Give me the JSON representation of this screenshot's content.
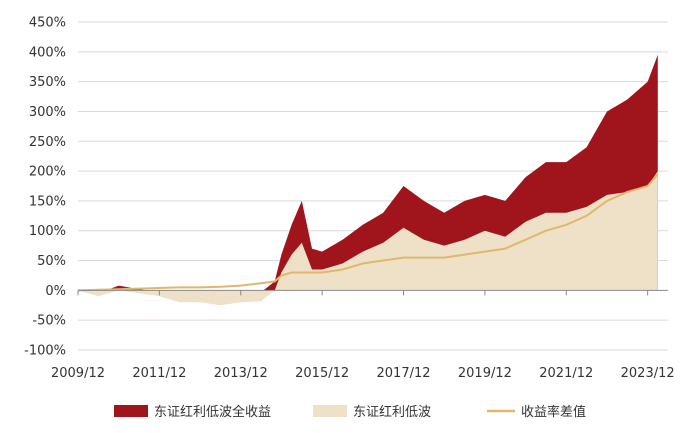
{
  "chart_data": {
    "type": "area",
    "title": "",
    "xlabel": "",
    "ylabel": "",
    "y_tick_labels": [
      "450%",
      "400%",
      "350%",
      "300%",
      "250%",
      "200%",
      "150%",
      "100%",
      "50%",
      "0%",
      "-50%",
      "-100%"
    ],
    "x_tick_labels": [
      "2009/12",
      "2011/12",
      "2013/12",
      "2015/12",
      "2017/12",
      "2019/12",
      "2021/12",
      "2023/12"
    ],
    "xlim": [
      "2009-12",
      "2024-06"
    ],
    "ylim": [
      -100,
      450
    ],
    "y_unit": "%",
    "grid": "horizontal",
    "legend_position": "bottom",
    "colors": {
      "total_return": "#a0151c",
      "index": "#efe1c8",
      "spread": "#e0b86b",
      "grid": "#d9d9d9",
      "axis": "#888888"
    },
    "x": [
      "2009-12",
      "2010-06",
      "2010-12",
      "2011-06",
      "2011-12",
      "2012-06",
      "2012-12",
      "2013-06",
      "2013-12",
      "2014-06",
      "2014-10",
      "2014-12",
      "2015-03",
      "2015-06",
      "2015-09",
      "2015-12",
      "2016-06",
      "2016-12",
      "2017-06",
      "2017-12",
      "2018-06",
      "2018-12",
      "2019-06",
      "2019-12",
      "2020-06",
      "2020-12",
      "2021-06",
      "2021-12",
      "2022-06",
      "2022-12",
      "2023-06",
      "2023-12",
      "2024-03"
    ],
    "series": [
      {
        "name": "东证红利低波全收益",
        "values": [
          0,
          -5,
          8,
          2,
          -3,
          -10,
          -8,
          -12,
          -8,
          -3,
          15,
          60,
          110,
          150,
          70,
          65,
          85,
          110,
          130,
          175,
          150,
          130,
          150,
          160,
          150,
          190,
          215,
          215,
          240,
          300,
          320,
          350,
          395
        ]
      },
      {
        "name": "东证红利低波",
        "values": [
          0,
          -10,
          0,
          -5,
          -10,
          -20,
          -20,
          -25,
          -20,
          -18,
          0,
          30,
          60,
          80,
          35,
          35,
          45,
          65,
          80,
          105,
          85,
          75,
          85,
          100,
          90,
          115,
          130,
          130,
          140,
          160,
          165,
          175,
          200
        ]
      },
      {
        "name": "收益率差值",
        "values": [
          0,
          1,
          2,
          3,
          4,
          5,
          5,
          6,
          8,
          12,
          15,
          25,
          30,
          30,
          30,
          30,
          35,
          45,
          50,
          55,
          55,
          55,
          60,
          65,
          70,
          85,
          100,
          110,
          125,
          150,
          165,
          175,
          195
        ]
      }
    ]
  }
}
